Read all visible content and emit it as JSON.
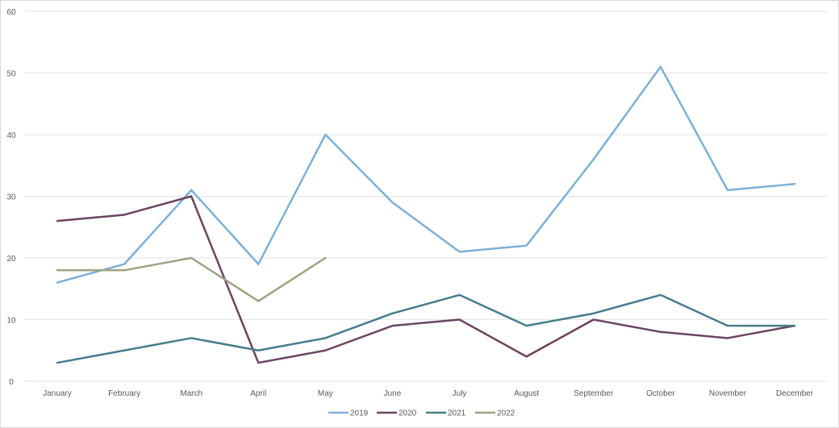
{
  "chart_data": {
    "type": "line",
    "title": "",
    "xlabel": "",
    "ylabel": "",
    "ylim": [
      0,
      60
    ],
    "yticks": [
      0,
      10,
      20,
      30,
      40,
      50,
      60
    ],
    "grid": true,
    "legend_position": "bottom",
    "categories": [
      "January",
      "February",
      "March",
      "April",
      "May",
      "June",
      "July",
      "August",
      "September",
      "October",
      "November",
      "December"
    ],
    "series": [
      {
        "name": "2019",
        "color": "#7eb0d5",
        "values": [
          16,
          19,
          31,
          19,
          40,
          29,
          21,
          22,
          36,
          51,
          31,
          32
        ]
      },
      {
        "name": "2020",
        "color": "#6b4560",
        "values": [
          26,
          27,
          30,
          3,
          5,
          9,
          10,
          4,
          10,
          8,
          7,
          9
        ]
      },
      {
        "name": "2021",
        "color": "#477c8c",
        "values": [
          3,
          5,
          7,
          5,
          7,
          11,
          14,
          9,
          11,
          14,
          9,
          9
        ]
      },
      {
        "name": "2022",
        "color": "#9fa383",
        "values": [
          18,
          18,
          20,
          13,
          20
        ]
      }
    ]
  }
}
